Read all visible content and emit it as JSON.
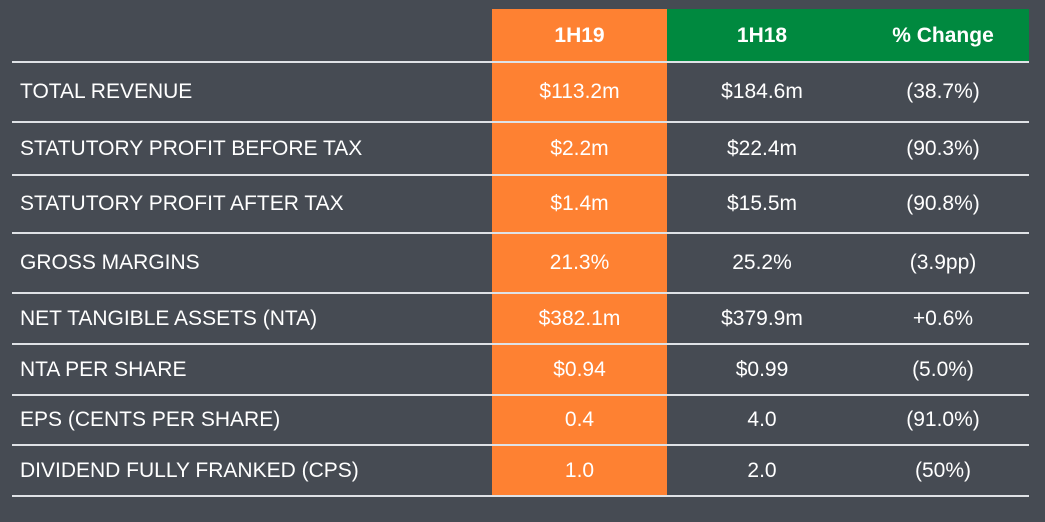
{
  "headers": {
    "h19": "1H19",
    "h18": "1H18",
    "change": "% Change"
  },
  "colors": {
    "background": "#464b53",
    "orange": "#fe8132",
    "green": "#00893f",
    "rule": "#dfe2e6"
  },
  "rows": [
    {
      "label": "TOTAL REVENUE",
      "h19": "$113.2m",
      "h18": "$184.6m",
      "change": "(38.7%)"
    },
    {
      "label": "STATUTORY PROFIT BEFORE TAX",
      "h19": "$2.2m",
      "h18": "$22.4m",
      "change": "(90.3%)"
    },
    {
      "label": "STATUTORY PROFIT AFTER TAX",
      "h19": "$1.4m",
      "h18": "$15.5m",
      "change": "(90.8%)"
    },
    {
      "label": "GROSS MARGINS",
      "h19": "21.3%",
      "h18": "25.2%",
      "change": "(3.9pp)"
    },
    {
      "label": "NET TANGIBLE ASSETS (NTA)",
      "h19": "$382.1m",
      "h18": "$379.9m",
      "change": "+0.6%"
    },
    {
      "label": "NTA PER SHARE",
      "h19": "$0.94",
      "h18": "$0.99",
      "change": "(5.0%)"
    },
    {
      "label": "EPS (CENTS PER SHARE)",
      "h19": "0.4",
      "h18": "4.0",
      "change": "(91.0%)"
    },
    {
      "label": "DIVIDEND FULLY FRANKED (CPS)",
      "h19": "1.0",
      "h18": "2.0",
      "change": "(50%)"
    }
  ]
}
